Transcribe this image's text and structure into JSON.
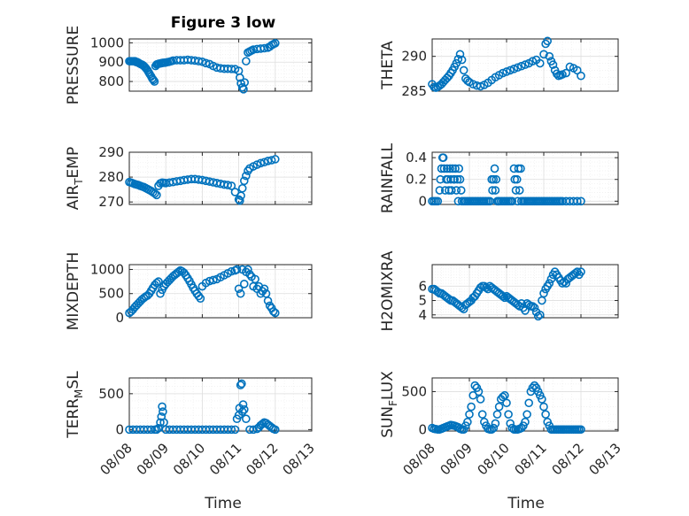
{
  "figure": {
    "title": "Figure 3 low",
    "marker_color": "#0072bd"
  },
  "chart_data": [
    {
      "type": "scatter",
      "ylabel": "PRESSURE",
      "xlim": [
        "08/08",
        "08/13"
      ],
      "ylim": [
        750,
        1020
      ],
      "xticks": [],
      "yticks": [
        800,
        900,
        1000
      ],
      "ytick_labels": [
        "800",
        "900",
        "1000"
      ],
      "grid": true,
      "x_days": [
        0,
        0.03,
        0.06,
        0.1,
        0.13,
        0.16,
        0.19,
        0.22,
        0.25,
        0.28,
        0.31,
        0.35,
        0.38,
        0.41,
        0.44,
        0.47,
        0.5,
        0.53,
        0.56,
        0.6,
        0.63,
        0.66,
        0.69,
        0.72,
        0.75,
        0.78,
        0.81,
        0.85,
        0.88,
        0.91,
        0.94,
        0.97,
        1.0,
        1.05,
        1.1,
        1.15,
        1.2,
        1.3,
        1.4,
        1.5,
        1.6,
        1.7,
        1.8,
        1.9,
        2.0,
        2.1,
        2.2,
        2.3,
        2.4,
        2.5,
        2.6,
        2.7,
        2.8,
        2.9,
        3.0,
        3.03,
        3.06,
        3.1,
        3.13,
        3.16,
        3.2,
        3.25,
        3.3,
        3.35,
        3.4,
        3.5,
        3.6,
        3.7,
        3.8,
        3.85,
        3.9,
        3.95,
        4.0
      ],
      "y": [
        905,
        905,
        905,
        905,
        905,
        905,
        900,
        900,
        897,
        893,
        890,
        887,
        883,
        878,
        872,
        865,
        858,
        848,
        838,
        826,
        815,
        808,
        800,
        880,
        888,
        890,
        892,
        893,
        895,
        896,
        897,
        897,
        898,
        900,
        902,
        905,
        908,
        910,
        910,
        910,
        912,
        910,
        908,
        905,
        902,
        895,
        890,
        880,
        872,
        868,
        866,
        866,
        865,
        864,
        855,
        820,
        790,
        770,
        760,
        795,
        905,
        950,
        955,
        960,
        965,
        968,
        970,
        972,
        975,
        980,
        988,
        993,
        998
      ]
    },
    {
      "type": "scatter",
      "ylabel": "THETA",
      "xlim": [
        "08/08",
        "08/13"
      ],
      "ylim": [
        285,
        292.5
      ],
      "xticks": [],
      "yticks": [
        285,
        290
      ],
      "ytick_labels": [
        "285",
        "290"
      ],
      "grid": true,
      "x_days": [
        0,
        0.05,
        0.1,
        0.15,
        0.2,
        0.25,
        0.3,
        0.35,
        0.4,
        0.45,
        0.5,
        0.55,
        0.6,
        0.65,
        0.7,
        0.75,
        0.8,
        0.85,
        0.9,
        0.95,
        1.0,
        1.1,
        1.2,
        1.3,
        1.4,
        1.5,
        1.6,
        1.7,
        1.8,
        1.9,
        2.0,
        2.1,
        2.2,
        2.3,
        2.4,
        2.5,
        2.6,
        2.7,
        2.8,
        2.9,
        3.0,
        3.05,
        3.1,
        3.15,
        3.2,
        3.25,
        3.3,
        3.35,
        3.4,
        3.45,
        3.5,
        3.6,
        3.7,
        3.8,
        3.9,
        4.0
      ],
      "y": [
        286,
        285.6,
        285.5,
        285.6,
        285.8,
        286.0,
        286.3,
        286.6,
        286.9,
        287.2,
        287.6,
        288.0,
        288.5,
        289.0,
        289.6,
        290.3,
        289.5,
        288.0,
        286.8,
        286.5,
        286.3,
        286.0,
        285.8,
        285.7,
        285.9,
        286.2,
        286.6,
        287.0,
        287.3,
        287.6,
        287.8,
        288.0,
        288.2,
        288.4,
        288.6,
        288.8,
        289.0,
        289.3,
        289.5,
        289.0,
        290.3,
        291.8,
        292.2,
        290.0,
        289.3,
        288.8,
        288.0,
        287.5,
        287.2,
        287.3,
        287.4,
        287.6,
        288.5,
        288.3,
        288.0,
        287.2
      ]
    },
    {
      "type": "scatter",
      "ylabel": "AIR_TEMP",
      "xlim": [
        "08/08",
        "08/13"
      ],
      "ylim": [
        269,
        290
      ],
      "xticks": [],
      "yticks": [
        270,
        280,
        290
      ],
      "ytick_labels": [
        "270",
        "280",
        "290"
      ],
      "grid": true,
      "x_days": [
        0,
        0.05,
        0.1,
        0.15,
        0.2,
        0.25,
        0.3,
        0.35,
        0.4,
        0.45,
        0.5,
        0.55,
        0.6,
        0.65,
        0.7,
        0.75,
        0.8,
        0.85,
        0.9,
        0.95,
        1.0,
        1.1,
        1.2,
        1.3,
        1.4,
        1.5,
        1.6,
        1.7,
        1.8,
        1.9,
        2.0,
        2.1,
        2.2,
        2.3,
        2.4,
        2.5,
        2.6,
        2.7,
        2.8,
        2.9,
        3.0,
        3.03,
        3.06,
        3.1,
        3.15,
        3.2,
        3.25,
        3.3,
        3.4,
        3.5,
        3.6,
        3.7,
        3.8,
        3.9,
        4.0
      ],
      "y": [
        278,
        277.8,
        277.5,
        277.2,
        277.0,
        276.8,
        276.5,
        276.2,
        276.0,
        275.6,
        275.2,
        274.8,
        274.4,
        273.9,
        273.4,
        272.8,
        276.5,
        277.5,
        277.8,
        277.7,
        277.6,
        277.8,
        278.0,
        278.3,
        278.5,
        278.8,
        279.0,
        279.2,
        279.2,
        279.0,
        278.8,
        278.5,
        278.2,
        277.9,
        277.6,
        277.3,
        277.0,
        276.8,
        276.5,
        274.0,
        271.0,
        270.5,
        272.5,
        275.5,
        278.5,
        280.5,
        282.5,
        283.5,
        284.3,
        285.0,
        285.6,
        286.0,
        286.5,
        286.8,
        287.2
      ]
    },
    {
      "type": "scatter",
      "ylabel": "RAINFALL",
      "xlim": [
        "08/08",
        "08/13"
      ],
      "ylim": [
        -0.03,
        0.45
      ],
      "xticks": [],
      "yticks": [
        0,
        0.2,
        0.4
      ],
      "ytick_labels": [
        "0",
        "0.2",
        "0.4"
      ],
      "grid": true,
      "x_days": [
        0,
        0.05,
        0.1,
        0.15,
        0.2,
        0.22,
        0.25,
        0.28,
        0.3,
        0.32,
        0.35,
        0.38,
        0.4,
        0.42,
        0.45,
        0.48,
        0.5,
        0.52,
        0.55,
        0.58,
        0.6,
        0.62,
        0.65,
        0.68,
        0.7,
        0.72,
        0.75,
        0.78,
        0.8,
        0.85,
        0.9,
        0.95,
        1.0,
        1.05,
        1.1,
        1.15,
        1.2,
        1.25,
        1.3,
        1.35,
        1.4,
        1.45,
        1.5,
        1.55,
        1.6,
        1.62,
        1.65,
        1.68,
        1.7,
        1.72,
        1.75,
        1.78,
        1.8,
        1.85,
        1.9,
        1.95,
        2.0,
        2.05,
        2.1,
        2.15,
        2.2,
        2.22,
        2.25,
        2.28,
        2.3,
        2.32,
        2.35,
        2.38,
        2.4,
        2.45,
        2.5,
        2.55,
        2.6,
        2.65,
        2.7,
        2.75,
        2.8,
        2.85,
        2.9,
        2.95,
        3.0,
        3.05,
        3.1,
        3.15,
        3.2,
        3.25,
        3.3,
        3.35,
        3.4,
        3.45,
        3.5,
        3.6,
        3.7,
        3.8,
        3.9,
        4.0
      ],
      "y": [
        0,
        0,
        0,
        0,
        0.1,
        0.2,
        0.3,
        0.4,
        0.4,
        0.3,
        0.1,
        0.2,
        0.3,
        0.2,
        0.1,
        0.3,
        0.2,
        0.1,
        0.3,
        0.2,
        0.2,
        0.3,
        0.1,
        0.2,
        0,
        0.3,
        0.2,
        0.1,
        0,
        0,
        0,
        0,
        0,
        0,
        0,
        0,
        0,
        0,
        0,
        0,
        0,
        0,
        0,
        0,
        0.2,
        0.1,
        0.2,
        0.3,
        0.1,
        0.2,
        0,
        0,
        0,
        0,
        0,
        0,
        0,
        0,
        0,
        0,
        0.3,
        0.2,
        0.1,
        0.2,
        0,
        0.3,
        0.1,
        0.3,
        0,
        0,
        0,
        0,
        0,
        0,
        0,
        0,
        0,
        0,
        0,
        0,
        0,
        0,
        0,
        0,
        0,
        0,
        0,
        0,
        0,
        0,
        0,
        0,
        0,
        0,
        0,
        0
      ]
    },
    {
      "type": "scatter",
      "ylabel": "MIXDEPTH",
      "xlim": [
        "08/08",
        "08/13"
      ],
      "ylim": [
        0,
        1100
      ],
      "xticks": [],
      "yticks": [
        0,
        500,
        1000
      ],
      "ytick_labels": [
        "0",
        "500",
        "1000"
      ],
      "grid": true,
      "x_days": [
        0,
        0.05,
        0.1,
        0.15,
        0.2,
        0.25,
        0.3,
        0.35,
        0.4,
        0.45,
        0.5,
        0.55,
        0.6,
        0.65,
        0.7,
        0.75,
        0.8,
        0.85,
        0.9,
        0.95,
        1.0,
        1.05,
        1.1,
        1.15,
        1.2,
        1.25,
        1.3,
        1.35,
        1.4,
        1.45,
        1.5,
        1.55,
        1.6,
        1.65,
        1.7,
        1.75,
        1.8,
        1.85,
        1.9,
        1.95,
        2.0,
        2.1,
        2.2,
        2.3,
        2.4,
        2.5,
        2.6,
        2.7,
        2.8,
        2.9,
        2.95,
        3.0,
        3.05,
        3.1,
        3.15,
        3.2,
        3.25,
        3.3,
        3.35,
        3.4,
        3.45,
        3.5,
        3.55,
        3.6,
        3.65,
        3.7,
        3.75,
        3.8,
        3.85,
        3.9,
        3.95,
        4.0
      ],
      "y": [
        100,
        130,
        170,
        220,
        260,
        300,
        340,
        380,
        410,
        440,
        460,
        500,
        560,
        620,
        680,
        720,
        750,
        500,
        580,
        650,
        700,
        740,
        780,
        820,
        860,
        890,
        920,
        950,
        980,
        960,
        930,
        880,
        820,
        760,
        690,
        620,
        560,
        500,
        450,
        400,
        650,
        720,
        760,
        780,
        800,
        840,
        880,
        920,
        960,
        980,
        1000,
        600,
        500,
        1000,
        700,
        950,
        1000,
        900,
        850,
        650,
        800,
        600,
        650,
        500,
        550,
        600,
        500,
        350,
        250,
        200,
        130,
        100
      ]
    },
    {
      "type": "scatter",
      "ylabel": "H2OMIXRA",
      "xlim": [
        "08/08",
        "08/13"
      ],
      "ylim": [
        3.8,
        7.5
      ],
      "xticks": [],
      "yticks": [
        4,
        5,
        6
      ],
      "ytick_labels": [
        "4",
        "5",
        "6"
      ],
      "grid": true,
      "x_days": [
        0,
        0.05,
        0.1,
        0.15,
        0.2,
        0.25,
        0.3,
        0.35,
        0.4,
        0.45,
        0.5,
        0.55,
        0.6,
        0.65,
        0.7,
        0.75,
        0.8,
        0.85,
        0.9,
        0.95,
        1.0,
        1.05,
        1.1,
        1.15,
        1.2,
        1.25,
        1.3,
        1.35,
        1.4,
        1.45,
        1.5,
        1.55,
        1.6,
        1.65,
        1.7,
        1.75,
        1.8,
        1.85,
        1.9,
        1.95,
        2.0,
        2.05,
        2.1,
        2.15,
        2.2,
        2.25,
        2.3,
        2.35,
        2.4,
        2.45,
        2.5,
        2.55,
        2.6,
        2.65,
        2.7,
        2.75,
        2.8,
        2.85,
        2.9,
        2.95,
        3.0,
        3.05,
        3.1,
        3.15,
        3.2,
        3.25,
        3.3,
        3.35,
        3.4,
        3.45,
        3.5,
        3.55,
        3.6,
        3.65,
        3.7,
        3.75,
        3.8,
        3.85,
        3.9,
        3.95,
        4.0
      ],
      "y": [
        5.8,
        5.8,
        5.7,
        5.6,
        5.5,
        5.5,
        5.4,
        5.3,
        5.2,
        5.1,
        5.0,
        5.0,
        4.9,
        4.8,
        4.7,
        4.6,
        4.5,
        4.4,
        4.7,
        4.8,
        4.9,
        5.0,
        5.2,
        5.3,
        5.5,
        5.7,
        5.9,
        6.0,
        6.0,
        5.9,
        5.8,
        6.0,
        5.9,
        5.8,
        5.7,
        5.6,
        5.5,
        5.4,
        5.3,
        5.2,
        5.3,
        5.2,
        5.1,
        5.0,
        4.9,
        4.8,
        4.7,
        4.6,
        4.8,
        4.5,
        4.3,
        4.8,
        4.7,
        4.6,
        4.6,
        4.5,
        4.2,
        3.9,
        4.0,
        5.0,
        5.5,
        5.8,
        6.0,
        6.2,
        6.5,
        6.8,
        7.0,
        6.8,
        6.6,
        6.4,
        6.2,
        6.3,
        6.2,
        6.5,
        6.6,
        6.7,
        6.8,
        6.9,
        7.0,
        6.8,
        7.0
      ]
    },
    {
      "type": "scatter",
      "ylabel": "TERR_MSL",
      "xlim": [
        "08/08",
        "08/13"
      ],
      "ylim": [
        -20,
        720
      ],
      "xticks": [
        "08/08",
        "08/09",
        "08/10",
        "08/11",
        "08/12",
        "08/13"
      ],
      "yticks": [
        0,
        500
      ],
      "ytick_labels": [
        "0",
        "500"
      ],
      "grid": true,
      "x_days": [
        0,
        0.1,
        0.2,
        0.3,
        0.4,
        0.5,
        0.6,
        0.7,
        0.75,
        0.8,
        0.85,
        0.88,
        0.9,
        0.92,
        0.95,
        1.0,
        1.1,
        1.2,
        1.3,
        1.4,
        1.5,
        1.6,
        1.7,
        1.8,
        1.9,
        2.0,
        2.1,
        2.2,
        2.3,
        2.4,
        2.5,
        2.6,
        2.7,
        2.8,
        2.9,
        2.95,
        3.0,
        3.02,
        3.05,
        3.08,
        3.1,
        3.12,
        3.15,
        3.2,
        3.3,
        3.4,
        3.5,
        3.55,
        3.6,
        3.65,
        3.7,
        3.75,
        3.8,
        3.85,
        3.9,
        3.95,
        4.0
      ],
      "y": [
        0,
        0,
        0,
        0,
        0,
        0,
        0,
        0,
        0,
        20,
        100,
        180,
        320,
        250,
        100,
        0,
        0,
        0,
        0,
        0,
        0,
        0,
        0,
        0,
        0,
        0,
        0,
        0,
        0,
        0,
        0,
        0,
        0,
        0,
        0,
        150,
        200,
        300,
        620,
        640,
        250,
        350,
        280,
        150,
        0,
        0,
        10,
        30,
        60,
        80,
        100,
        90,
        70,
        50,
        30,
        10,
        0
      ]
    },
    {
      "type": "scatter",
      "ylabel": "SUN_FLUX",
      "xlim": [
        "08/08",
        "08/13"
      ],
      "ylim": [
        -20,
        680
      ],
      "xticks": [
        "08/08",
        "08/09",
        "08/10",
        "08/11",
        "08/12",
        "08/13"
      ],
      "yticks": [
        0,
        500
      ],
      "ytick_labels": [
        "0",
        "500"
      ],
      "grid": true,
      "x_days": [
        0,
        0.05,
        0.1,
        0.15,
        0.2,
        0.25,
        0.3,
        0.35,
        0.4,
        0.45,
        0.5,
        0.55,
        0.6,
        0.65,
        0.7,
        0.75,
        0.8,
        0.85,
        0.9,
        0.95,
        1.0,
        1.05,
        1.1,
        1.15,
        1.2,
        1.25,
        1.3,
        1.35,
        1.4,
        1.45,
        1.5,
        1.55,
        1.6,
        1.65,
        1.7,
        1.75,
        1.8,
        1.85,
        1.9,
        1.95,
        2.0,
        2.05,
        2.1,
        2.15,
        2.2,
        2.25,
        2.3,
        2.35,
        2.4,
        2.45,
        2.5,
        2.55,
        2.6,
        2.65,
        2.7,
        2.75,
        2.8,
        2.85,
        2.9,
        2.95,
        3.0,
        3.05,
        3.1,
        3.15,
        3.2,
        3.25,
        3.3,
        3.35,
        3.4,
        3.45,
        3.5,
        3.55,
        3.6,
        3.65,
        3.7,
        3.75,
        3.8,
        3.85,
        3.9,
        3.95,
        4.0
      ],
      "y": [
        20,
        10,
        5,
        0,
        0,
        10,
        20,
        30,
        40,
        50,
        60,
        55,
        50,
        40,
        30,
        10,
        0,
        0,
        50,
        100,
        200,
        300,
        450,
        580,
        550,
        500,
        400,
        200,
        100,
        50,
        10,
        0,
        0,
        20,
        80,
        200,
        300,
        400,
        430,
        450,
        350,
        200,
        80,
        20,
        0,
        0,
        0,
        10,
        20,
        50,
        100,
        200,
        350,
        500,
        550,
        580,
        550,
        500,
        450,
        400,
        300,
        200,
        100,
        50,
        0,
        0,
        0,
        0,
        0,
        0,
        0,
        0,
        0,
        0,
        0,
        0,
        0,
        0,
        0,
        0,
        0
      ]
    }
  ],
  "labels": {
    "xlabel_left": "Time",
    "xlabel_right": "Time",
    "ylabels": [
      {
        "main": "PRESSURE",
        "sub": "",
        "tail": ""
      },
      {
        "main": "THETA",
        "sub": "",
        "tail": ""
      },
      {
        "main": "AIR",
        "sub": "T",
        "tail": "EMP"
      },
      {
        "main": "RAINFALL",
        "sub": "",
        "tail": ""
      },
      {
        "main": "MIXDEPTH",
        "sub": "",
        "tail": ""
      },
      {
        "main": "H2OMIXRA",
        "sub": "",
        "tail": ""
      },
      {
        "main": "TERR",
        "sub": "M",
        "tail": "SL"
      },
      {
        "main": "SUN",
        "sub": "F",
        "tail": "LUX"
      }
    ]
  }
}
